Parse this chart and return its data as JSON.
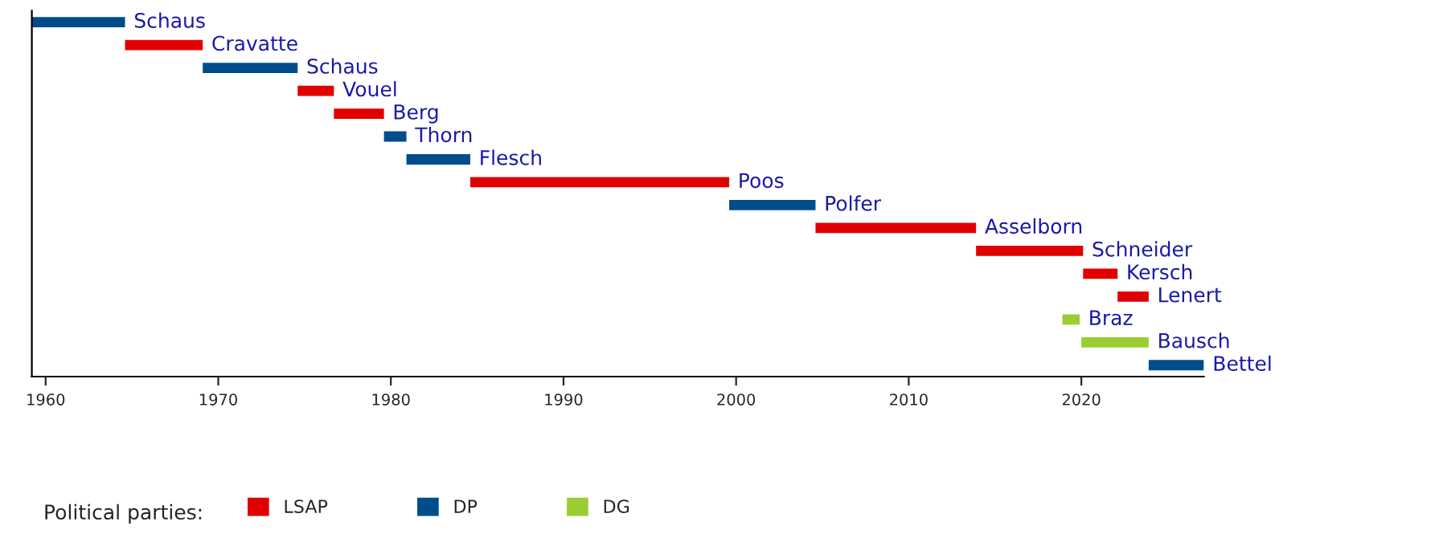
{
  "chart_data": {
    "type": "bar",
    "orientation": "horizontal",
    "categories": [
      "Schaus",
      "Cravatte",
      "Schaus",
      "Vouel",
      "Berg",
      "Thorn",
      "Flesch",
      "Poos",
      "Polfer",
      "Asselborn",
      "Schneider",
      "Kersch",
      "Lenert",
      "Braz",
      "Bausch",
      "Bettel"
    ],
    "series": [
      {
        "name": "LSAP",
        "color": "#e00000",
        "base": [
          null,
          1964.6,
          null,
          1974.6,
          1976.7,
          null,
          null,
          1984.6,
          null,
          2004.6,
          2013.9,
          2020.1,
          2022.1,
          null,
          null,
          null
        ],
        "values": [
          null,
          4.5,
          null,
          2.1,
          2.9,
          null,
          null,
          15.0,
          null,
          9.3,
          6.2,
          2.0,
          1.8,
          null,
          null,
          null
        ]
      },
      {
        "name": "DP",
        "color": "#004d8c",
        "base": [
          1959.2,
          null,
          1969.1,
          null,
          null,
          1979.6,
          1980.9,
          null,
          1999.6,
          null,
          null,
          null,
          null,
          null,
          null,
          2023.9
        ],
        "values": [
          5.4,
          null,
          5.5,
          null,
          null,
          1.3,
          3.7,
          null,
          5.0,
          null,
          null,
          null,
          null,
          null,
          null,
          3.2
        ]
      },
      {
        "name": "DG",
        "color": "#9acd32",
        "base": [
          null,
          null,
          null,
          null,
          null,
          null,
          null,
          null,
          null,
          null,
          null,
          null,
          null,
          2018.9,
          2020.0,
          null
        ],
        "values": [
          null,
          null,
          null,
          null,
          null,
          null,
          null,
          null,
          null,
          null,
          null,
          null,
          null,
          1.0,
          3.9,
          null
        ]
      }
    ],
    "xlim": [
      1959.2,
      2027.1
    ],
    "xticks": [
      1960,
      1970,
      1980,
      1990,
      2000,
      2010,
      2020
    ],
    "legend_title": "Political parties:",
    "legend": "bottom",
    "grid": false
  }
}
